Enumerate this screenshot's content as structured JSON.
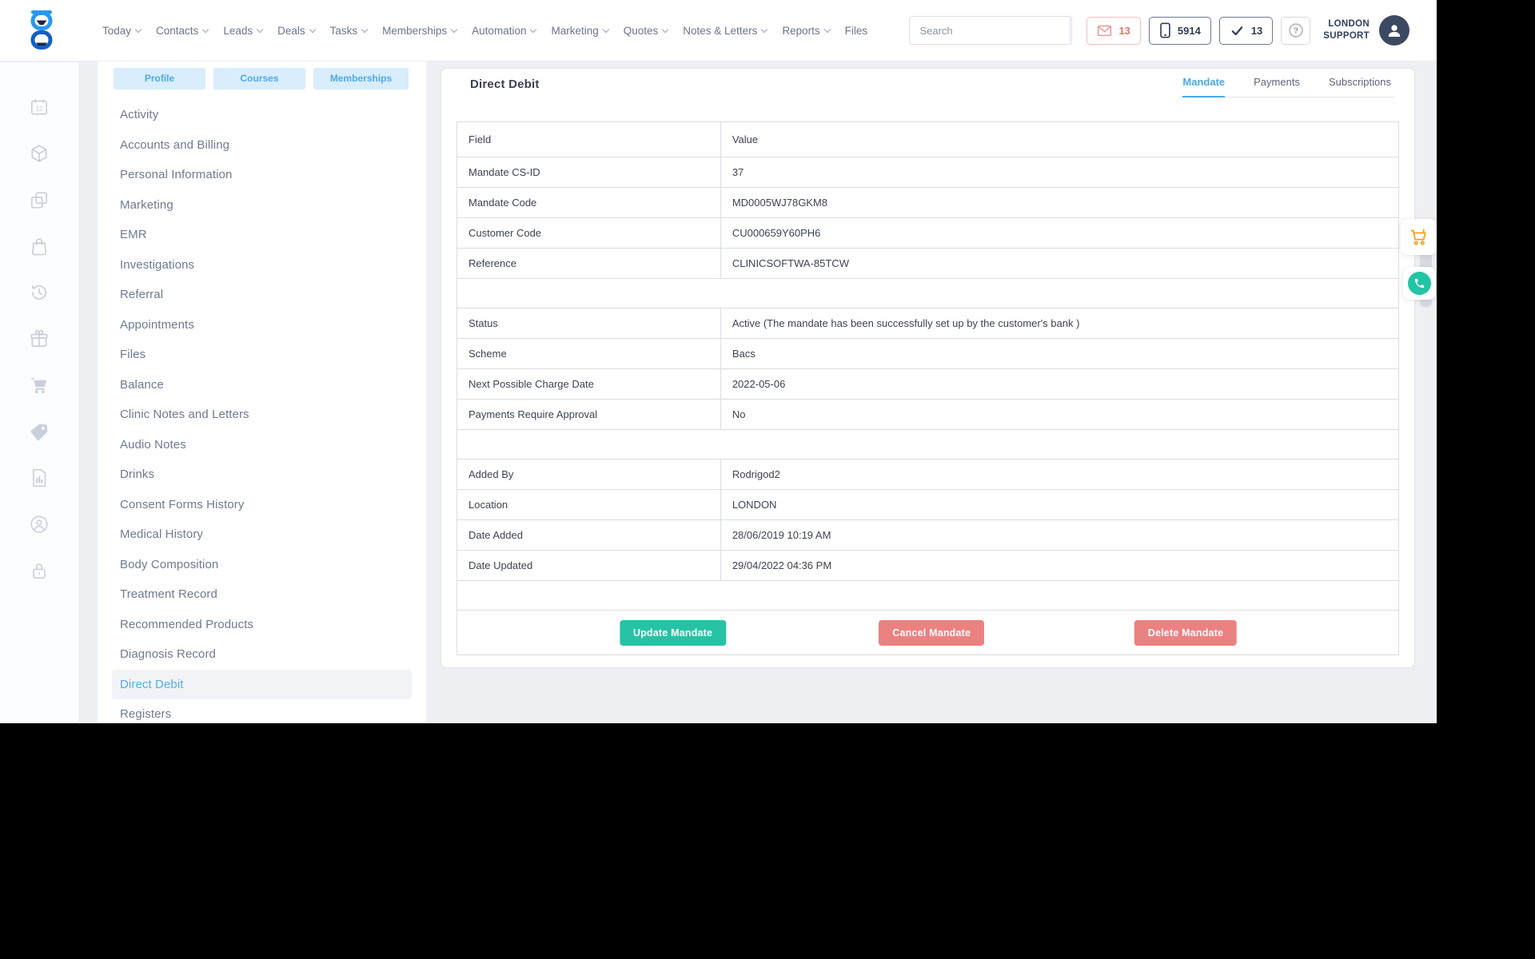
{
  "topnav": {
    "menu": [
      {
        "label": "Today",
        "chevron": true
      },
      {
        "label": "Contacts",
        "chevron": true
      },
      {
        "label": "Leads",
        "chevron": true
      },
      {
        "label": "Deals",
        "chevron": true
      },
      {
        "label": "Tasks",
        "chevron": true
      },
      {
        "label": "Memberships",
        "chevron": true
      },
      {
        "label": "Automation",
        "chevron": true
      },
      {
        "label": "Marketing",
        "chevron": true
      },
      {
        "label": "Quotes",
        "chevron": true
      },
      {
        "label": "Notes & Letters",
        "chevron": true
      },
      {
        "label": "Reports",
        "chevron": true
      },
      {
        "label": "Files",
        "chevron": false
      }
    ],
    "search": {
      "placeholder": "Search"
    },
    "badges": [
      {
        "icon": "envelope-icon",
        "count": "13",
        "style": "salmon"
      },
      {
        "icon": "phone-icon",
        "count": "5914",
        "style": "navy"
      },
      {
        "icon": "check-icon",
        "count": "13",
        "style": "navy"
      }
    ],
    "help_label": "?",
    "user": {
      "line1": "LONDON",
      "line2": "SUPPORT"
    }
  },
  "rail_icons": [
    "calendar-12",
    "cube",
    "copy",
    "shop-bag",
    "history",
    "gift",
    "cart",
    "price-tag",
    "report",
    "account",
    "lock"
  ],
  "patient_tabs": [
    "Profile",
    "Courses",
    "Memberships"
  ],
  "patient_menu": {
    "items": [
      {
        "label": "Activity",
        "active": false
      },
      {
        "label": "Accounts and Billing",
        "active": false
      },
      {
        "label": "Personal Information",
        "active": false
      },
      {
        "label": "Marketing",
        "active": false
      },
      {
        "label": "EMR",
        "active": false
      },
      {
        "label": "Investigations",
        "active": false
      },
      {
        "label": "Referral",
        "active": false
      },
      {
        "label": "Appointments",
        "active": false
      },
      {
        "label": "Files",
        "active": false
      },
      {
        "label": "Balance",
        "active": false
      },
      {
        "label": "Clinic Notes and Letters",
        "active": false
      },
      {
        "label": "Audio Notes",
        "active": false
      },
      {
        "label": "Drinks",
        "active": false
      },
      {
        "label": "Consent Forms History",
        "active": false
      },
      {
        "label": "Medical History",
        "active": false
      },
      {
        "label": "Body Composition",
        "active": false
      },
      {
        "label": "Treatment Record",
        "active": false
      },
      {
        "label": "Recommended Products",
        "active": false
      },
      {
        "label": "Diagnosis Record",
        "active": false
      },
      {
        "label": "Direct Debit",
        "active": true
      },
      {
        "label": "Registers",
        "active": false
      }
    ]
  },
  "main": {
    "title": "Direct Debit",
    "tabs": [
      {
        "label": "Mandate",
        "active": true
      },
      {
        "label": "Payments",
        "active": false
      },
      {
        "label": "Subscriptions",
        "active": false
      }
    ],
    "table": {
      "headers": [
        "Field",
        "Value"
      ],
      "sections": [
        {
          "rows": [
            [
              "Mandate CS-ID",
              "37"
            ],
            [
              "Mandate Code",
              "MD0005WJ78GKM8"
            ],
            [
              "Customer Code",
              "CU000659Y60PH6"
            ],
            [
              "Reference",
              "CLINICSOFTWA-85TCW"
            ]
          ]
        },
        {
          "rows": [
            [
              "Status",
              "Active (The mandate has been successfully set up by the customer's bank )"
            ],
            [
              "Scheme",
              "Bacs"
            ],
            [
              "Next Possible Charge Date",
              "2022-05-06"
            ],
            [
              "Payments Require Approval",
              "No"
            ]
          ]
        },
        {
          "rows": [
            [
              "Added By",
              "Rodrigod2"
            ],
            [
              "Location",
              "LONDON"
            ],
            [
              "Date Added",
              "28/06/2019 10:19 AM"
            ],
            [
              "Date Updated",
              "29/04/2022 04:36 PM"
            ]
          ]
        }
      ],
      "buttons": [
        {
          "label": "Update Mandate",
          "style": "primary"
        },
        {
          "label": "Cancel Mandate",
          "style": "danger"
        },
        {
          "label": "Delete Mandate",
          "style": "danger"
        }
      ]
    }
  },
  "floating": [
    {
      "icon": "cart-icon"
    },
    {
      "icon": "whatsapp-phone-icon"
    }
  ],
  "colors": {
    "accent_blue": "#4aa9ea",
    "tab_bg_blue": "#d9edfc",
    "teal": "#27c2a4",
    "salmon": "#ec8181",
    "navy": "#3c4962",
    "orange": "#f5a623"
  }
}
